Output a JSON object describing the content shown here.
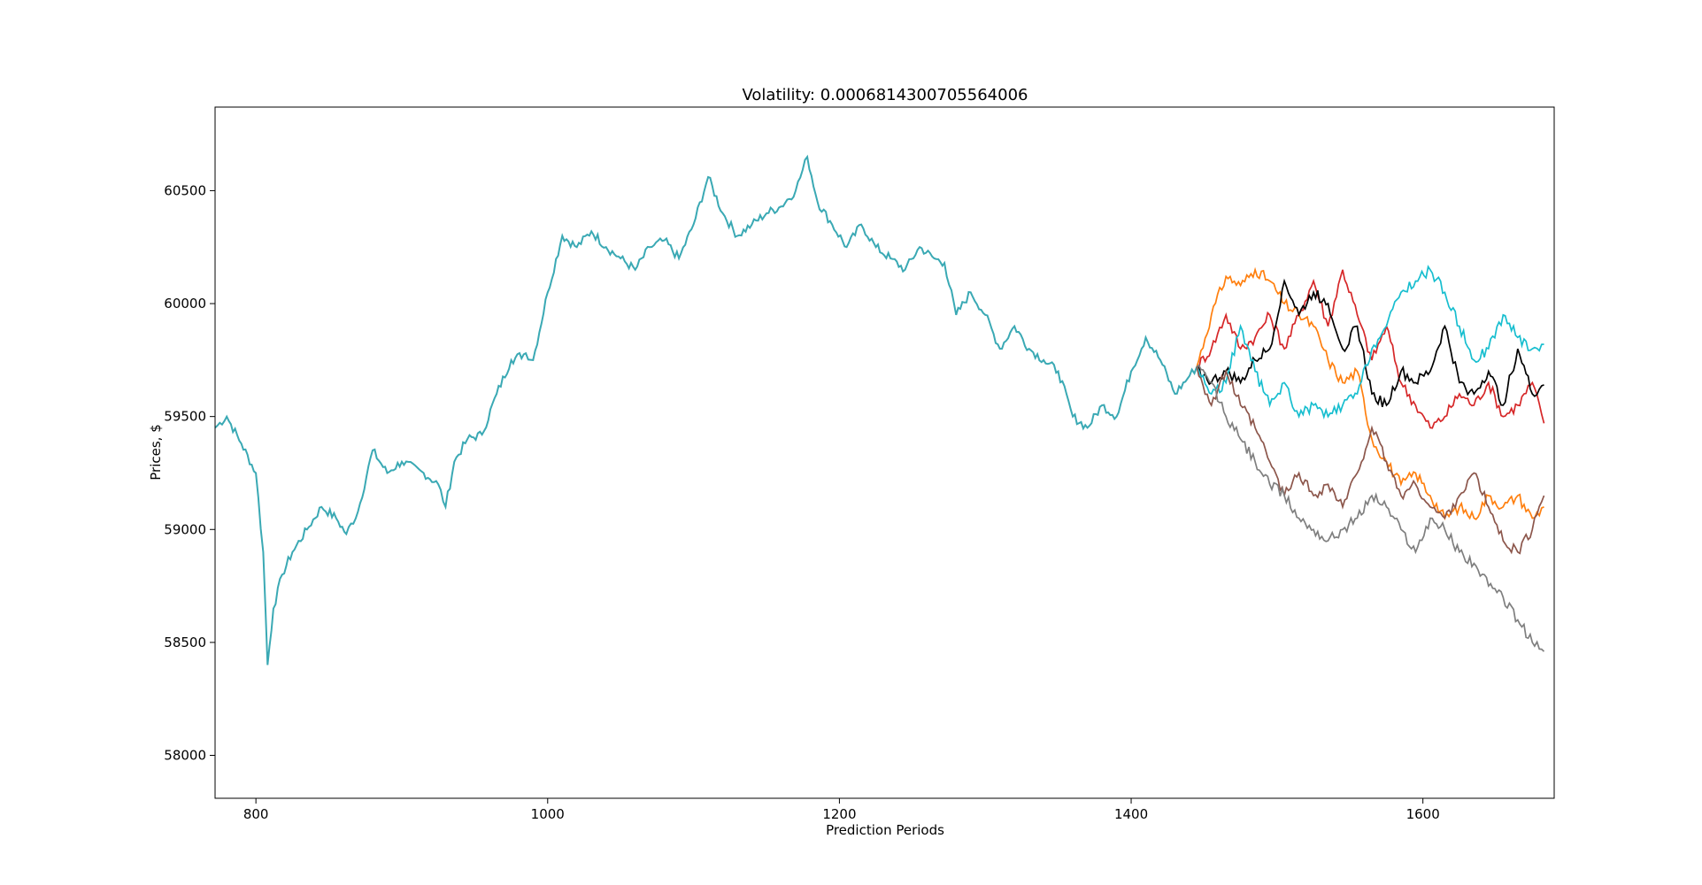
{
  "chart_data": {
    "type": "line",
    "title": "Volatility: 0.0006814300705564006",
    "xlabel": "Prediction Periods",
    "ylabel": "Prices, $",
    "xlim": [
      772,
      1690
    ],
    "ylim": [
      57810,
      60870
    ],
    "xticks": [
      800,
      1000,
      1200,
      1400,
      1600
    ],
    "yticks": [
      58000,
      58500,
      59000,
      59500,
      60000,
      60500
    ],
    "grid": false,
    "legend": "none",
    "history": {
      "color": "#3aa9b4",
      "points": [
        [
          772,
          59450
        ],
        [
          780,
          59500
        ],
        [
          790,
          59380
        ],
        [
          800,
          59250
        ],
        [
          805,
          58900
        ],
        [
          808,
          58400
        ],
        [
          812,
          58650
        ],
        [
          818,
          58800
        ],
        [
          825,
          58900
        ],
        [
          835,
          59000
        ],
        [
          845,
          59100
        ],
        [
          855,
          59050
        ],
        [
          862,
          58980
        ],
        [
          870,
          59080
        ],
        [
          880,
          59350
        ],
        [
          890,
          59250
        ],
        [
          900,
          59300
        ],
        [
          915,
          59250
        ],
        [
          925,
          59200
        ],
        [
          930,
          59100
        ],
        [
          936,
          59300
        ],
        [
          945,
          59400
        ],
        [
          955,
          59420
        ],
        [
          965,
          59600
        ],
        [
          975,
          59750
        ],
        [
          985,
          59780
        ],
        [
          990,
          59750
        ],
        [
          1000,
          60050
        ],
        [
          1010,
          60300
        ],
        [
          1020,
          60250
        ],
        [
          1030,
          60320
        ],
        [
          1040,
          60250
        ],
        [
          1050,
          60200
        ],
        [
          1060,
          60150
        ],
        [
          1070,
          60250
        ],
        [
          1080,
          60280
        ],
        [
          1090,
          60200
        ],
        [
          1100,
          60350
        ],
        [
          1110,
          60560
        ],
        [
          1120,
          60400
        ],
        [
          1130,
          60300
        ],
        [
          1140,
          60350
        ],
        [
          1150,
          60400
        ],
        [
          1160,
          60430
        ],
        [
          1170,
          60500
        ],
        [
          1178,
          60650
        ],
        [
          1185,
          60450
        ],
        [
          1195,
          60350
        ],
        [
          1205,
          60250
        ],
        [
          1215,
          60350
        ],
        [
          1225,
          60250
        ],
        [
          1235,
          60200
        ],
        [
          1245,
          60150
        ],
        [
          1255,
          60250
        ],
        [
          1265,
          60200
        ],
        [
          1272,
          60180
        ],
        [
          1280,
          59950
        ],
        [
          1290,
          60050
        ],
        [
          1300,
          59950
        ],
        [
          1310,
          59800
        ],
        [
          1320,
          59900
        ],
        [
          1330,
          59800
        ],
        [
          1340,
          59750
        ],
        [
          1350,
          59700
        ],
        [
          1360,
          59500
        ],
        [
          1370,
          59450
        ],
        [
          1380,
          59550
        ],
        [
          1390,
          59500
        ],
        [
          1400,
          59700
        ],
        [
          1410,
          59850
        ],
        [
          1420,
          59750
        ],
        [
          1430,
          59600
        ],
        [
          1440,
          59680
        ],
        [
          1445,
          59720
        ]
      ]
    },
    "series": [
      {
        "color": "#ff7f0e",
        "points": [
          [
            1445,
            59720
          ],
          [
            1455,
            59950
          ],
          [
            1465,
            60120
          ],
          [
            1475,
            60080
          ],
          [
            1485,
            60150
          ],
          [
            1495,
            60100
          ],
          [
            1505,
            60000
          ],
          [
            1515,
            59950
          ],
          [
            1525,
            59900
          ],
          [
            1535,
            59750
          ],
          [
            1545,
            59650
          ],
          [
            1555,
            59700
          ],
          [
            1565,
            59400
          ],
          [
            1575,
            59300
          ],
          [
            1585,
            59200
          ],
          [
            1595,
            59250
          ],
          [
            1605,
            59150
          ],
          [
            1615,
            59050
          ],
          [
            1625,
            59100
          ],
          [
            1635,
            59050
          ],
          [
            1645,
            59150
          ],
          [
            1655,
            59100
          ],
          [
            1665,
            59150
          ],
          [
            1675,
            59050
          ],
          [
            1683,
            59100
          ]
        ]
      },
      {
        "color": "#d62728",
        "points": [
          [
            1445,
            59720
          ],
          [
            1455,
            59800
          ],
          [
            1465,
            59950
          ],
          [
            1475,
            59800
          ],
          [
            1485,
            59850
          ],
          [
            1495,
            59950
          ],
          [
            1505,
            59800
          ],
          [
            1515,
            59950
          ],
          [
            1525,
            60100
          ],
          [
            1535,
            59900
          ],
          [
            1545,
            60150
          ],
          [
            1555,
            59950
          ],
          [
            1565,
            59750
          ],
          [
            1575,
            59900
          ],
          [
            1585,
            59650
          ],
          [
            1595,
            59550
          ],
          [
            1605,
            59450
          ],
          [
            1615,
            59500
          ],
          [
            1625,
            59600
          ],
          [
            1635,
            59550
          ],
          [
            1645,
            59650
          ],
          [
            1655,
            59500
          ],
          [
            1665,
            59550
          ],
          [
            1675,
            59650
          ],
          [
            1683,
            59470
          ]
        ]
      },
      {
        "color": "#000000",
        "points": [
          [
            1445,
            59720
          ],
          [
            1455,
            59650
          ],
          [
            1465,
            59700
          ],
          [
            1475,
            59650
          ],
          [
            1485,
            59750
          ],
          [
            1495,
            59800
          ],
          [
            1505,
            60100
          ],
          [
            1515,
            59950
          ],
          [
            1525,
            60050
          ],
          [
            1535,
            60000
          ],
          [
            1545,
            59800
          ],
          [
            1555,
            59900
          ],
          [
            1565,
            59600
          ],
          [
            1575,
            59550
          ],
          [
            1585,
            59700
          ],
          [
            1595,
            59650
          ],
          [
            1605,
            59700
          ],
          [
            1615,
            59900
          ],
          [
            1625,
            59650
          ],
          [
            1635,
            59600
          ],
          [
            1645,
            59700
          ],
          [
            1655,
            59550
          ],
          [
            1665,
            59800
          ],
          [
            1675,
            59600
          ],
          [
            1683,
            59640
          ]
        ]
      },
      {
        "color": "#17becf",
        "points": [
          [
            1445,
            59720
          ],
          [
            1455,
            59600
          ],
          [
            1465,
            59650
          ],
          [
            1475,
            59900
          ],
          [
            1485,
            59700
          ],
          [
            1495,
            59550
          ],
          [
            1505,
            59650
          ],
          [
            1515,
            59500
          ],
          [
            1525,
            59550
          ],
          [
            1535,
            59500
          ],
          [
            1545,
            59550
          ],
          [
            1555,
            59600
          ],
          [
            1565,
            59800
          ],
          [
            1575,
            59900
          ],
          [
            1585,
            60050
          ],
          [
            1595,
            60100
          ],
          [
            1605,
            60150
          ],
          [
            1615,
            60050
          ],
          [
            1625,
            59900
          ],
          [
            1635,
            59750
          ],
          [
            1645,
            59800
          ],
          [
            1655,
            59950
          ],
          [
            1665,
            59850
          ],
          [
            1675,
            59800
          ],
          [
            1683,
            59820
          ]
        ]
      },
      {
        "color": "#8c564b",
        "points": [
          [
            1445,
            59720
          ],
          [
            1455,
            59550
          ],
          [
            1465,
            59700
          ],
          [
            1475,
            59550
          ],
          [
            1485,
            59450
          ],
          [
            1495,
            59300
          ],
          [
            1505,
            59150
          ],
          [
            1515,
            59250
          ],
          [
            1525,
            59150
          ],
          [
            1535,
            59200
          ],
          [
            1545,
            59100
          ],
          [
            1555,
            59250
          ],
          [
            1565,
            59450
          ],
          [
            1575,
            59300
          ],
          [
            1585,
            59150
          ],
          [
            1595,
            59200
          ],
          [
            1605,
            59100
          ],
          [
            1615,
            59050
          ],
          [
            1625,
            59150
          ],
          [
            1635,
            59250
          ],
          [
            1645,
            59100
          ],
          [
            1655,
            58950
          ],
          [
            1665,
            58900
          ],
          [
            1675,
            59000
          ],
          [
            1683,
            59150
          ]
        ]
      },
      {
        "color": "#7f7f7f",
        "points": [
          [
            1445,
            59720
          ],
          [
            1455,
            59650
          ],
          [
            1465,
            59500
          ],
          [
            1475,
            59400
          ],
          [
            1485,
            59300
          ],
          [
            1495,
            59200
          ],
          [
            1505,
            59150
          ],
          [
            1515,
            59050
          ],
          [
            1525,
            59000
          ],
          [
            1535,
            58950
          ],
          [
            1545,
            59000
          ],
          [
            1555,
            59050
          ],
          [
            1565,
            59150
          ],
          [
            1575,
            59100
          ],
          [
            1585,
            59000
          ],
          [
            1595,
            58900
          ],
          [
            1605,
            59050
          ],
          [
            1615,
            59000
          ],
          [
            1625,
            58900
          ],
          [
            1635,
            58850
          ],
          [
            1645,
            58750
          ],
          [
            1655,
            58700
          ],
          [
            1665,
            58600
          ],
          [
            1675,
            58500
          ],
          [
            1683,
            58460
          ]
        ]
      }
    ]
  }
}
